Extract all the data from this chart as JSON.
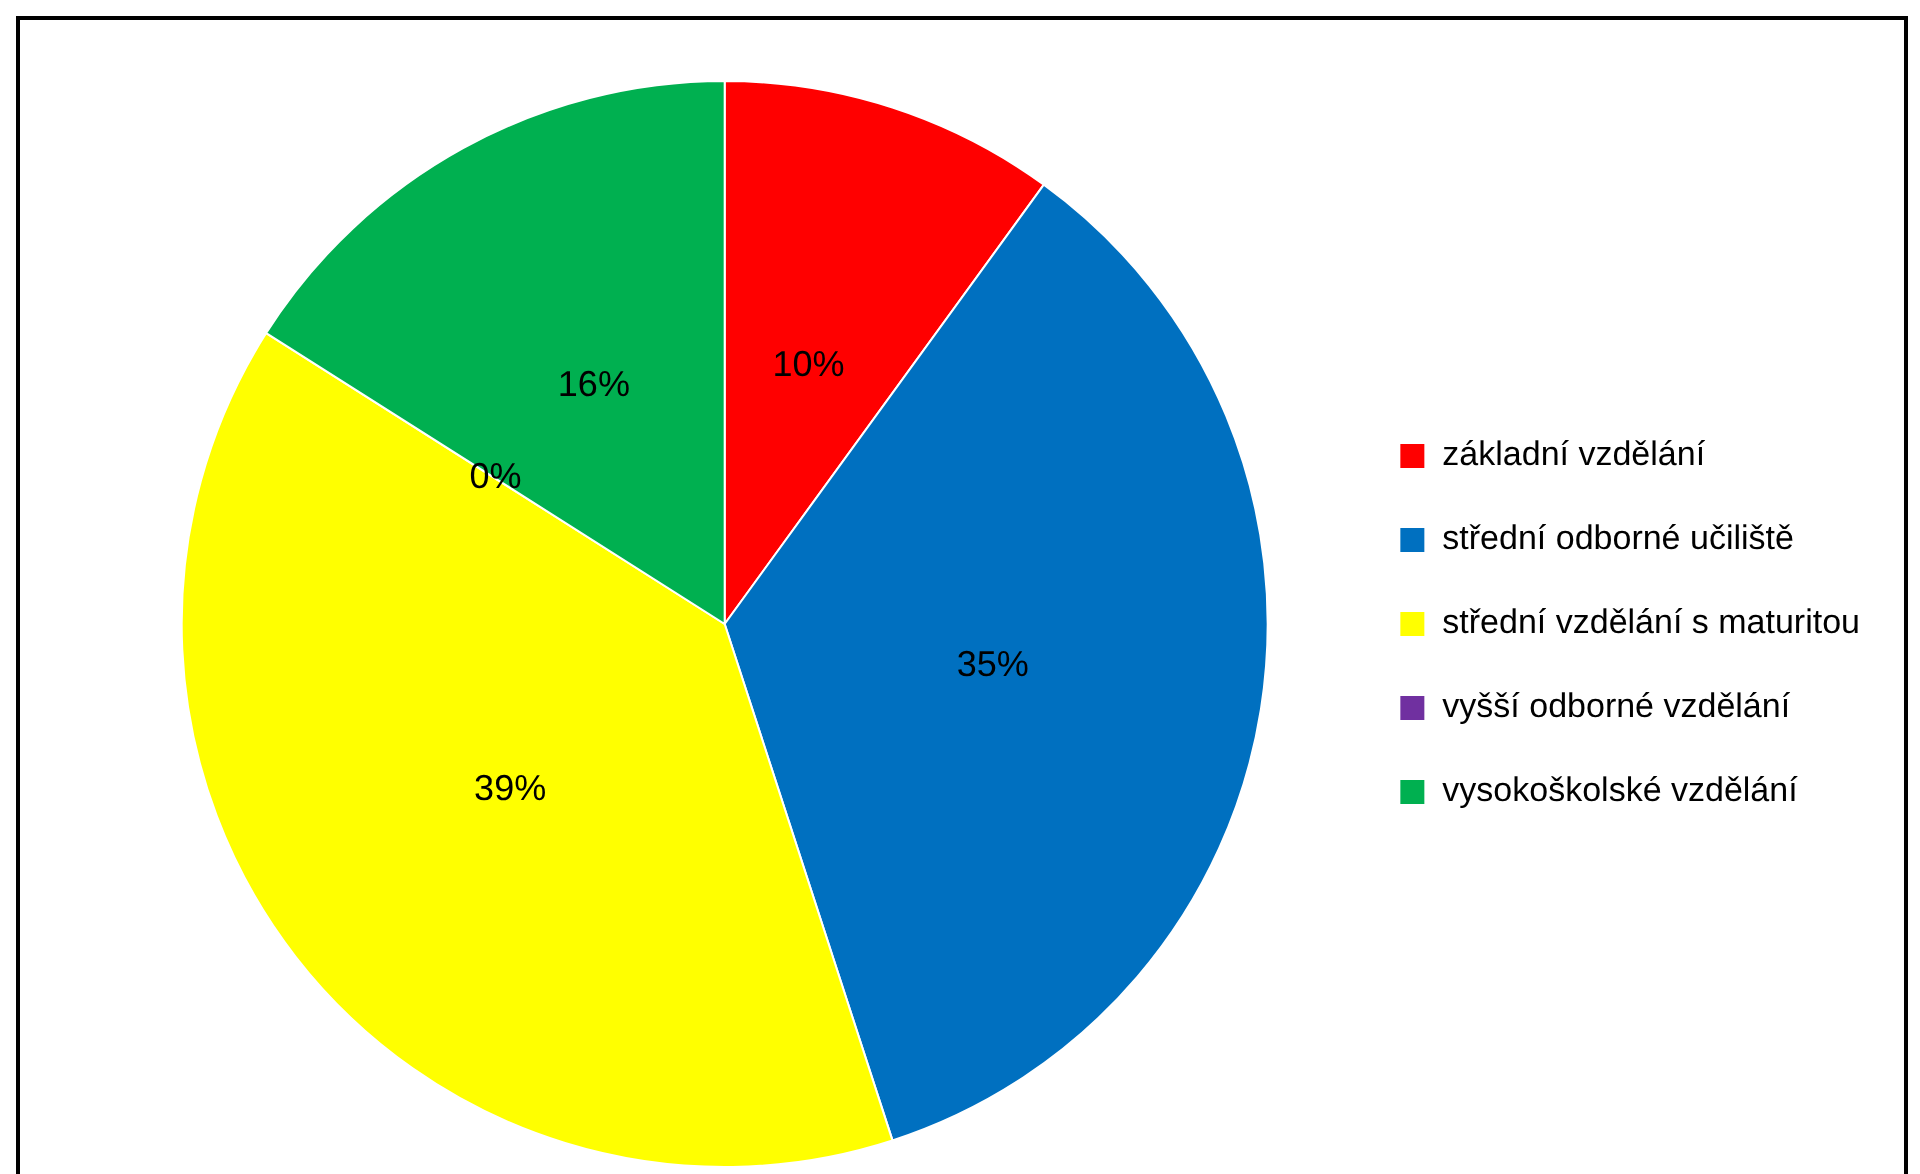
{
  "chart_data": {
    "type": "pie",
    "categories": [
      "základní vzdělání",
      "střední odborné učiliště",
      "střední vzdělání s maturitou",
      "vyšší odborné vzdělání",
      "vysokoškolské vzdělání"
    ],
    "values": [
      10,
      35,
      39,
      0,
      16
    ],
    "colors": [
      "#ff0000",
      "#0070c0",
      "#ffff00",
      "#7030a0",
      "#00b050"
    ],
    "value_labels": [
      "10%",
      "35%",
      "39%",
      "0%",
      "16%"
    ],
    "legend": "right"
  }
}
